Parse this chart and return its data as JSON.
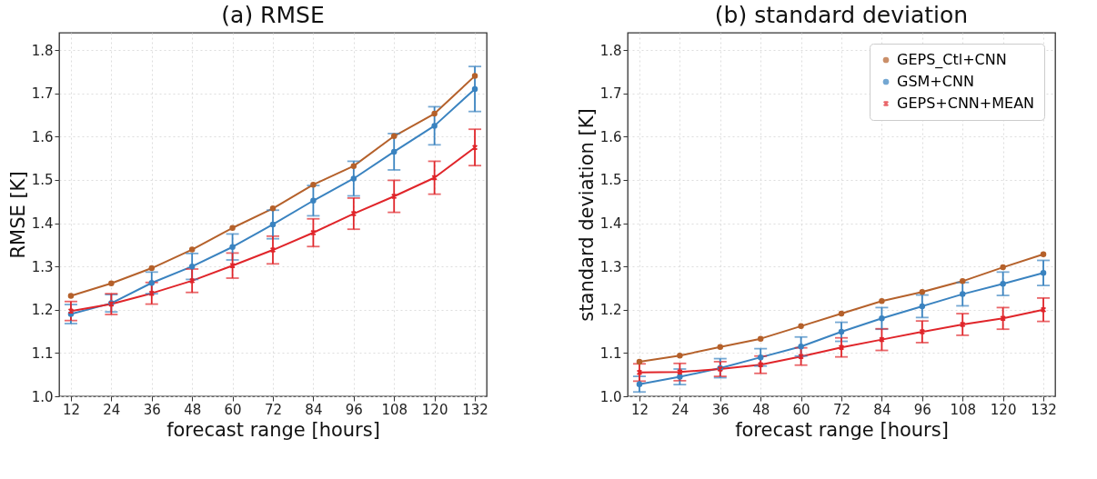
{
  "chart_data": [
    {
      "type": "line",
      "title": "(a) RMSE",
      "xlabel": "forecast range [hours]",
      "ylabel": "RMSE [K]",
      "x": [
        12,
        24,
        36,
        48,
        60,
        72,
        84,
        96,
        108,
        120,
        132
      ],
      "xlim": [
        8.5,
        135.5
      ],
      "xticks": [
        12,
        24,
        36,
        48,
        60,
        72,
        84,
        96,
        108,
        120,
        132
      ],
      "ylim": [
        1.0,
        1.84
      ],
      "yticks": [
        {
          "value": 1,
          "label": "1.0"
        },
        1.1,
        1.2,
        1.3,
        1.4,
        1.5,
        1.6,
        1.7,
        1.8
      ],
      "grid": true,
      "legend": false,
      "series": [
        {
          "color": "#b5612b",
          "marker": "circle",
          "values": [
            1.232,
            1.261,
            1.296,
            1.339,
            1.389,
            1.434,
            1.489,
            1.532,
            1.601,
            1.653,
            1.74
          ]
        },
        {
          "color": "#3a83c0",
          "marker": "circle",
          "values": [
            1.19,
            1.215,
            1.262,
            1.3,
            1.345,
            1.397,
            1.452,
            1.503,
            1.565,
            1.625,
            1.71
          ],
          "errors": [
            0.022,
            0.02,
            0.025,
            0.03,
            0.03,
            0.033,
            0.035,
            0.04,
            0.042,
            0.044,
            0.052
          ]
        },
        {
          "color": "#e0252a",
          "marker": "cross",
          "values": [
            1.197,
            1.213,
            1.238,
            1.267,
            1.302,
            1.338,
            1.378,
            1.422,
            1.462,
            1.505,
            1.575
          ],
          "errors": [
            0.022,
            0.024,
            0.025,
            0.027,
            0.029,
            0.032,
            0.032,
            0.036,
            0.037,
            0.038,
            0.042
          ]
        }
      ]
    },
    {
      "type": "line",
      "title": "(b) standard deviation",
      "xlabel": "forecast range [hours]",
      "ylabel": "standard deviation [K]",
      "x": [
        12,
        24,
        36,
        48,
        60,
        72,
        84,
        96,
        108,
        120,
        132
      ],
      "xlim": [
        8.5,
        135.5
      ],
      "xticks": [
        12,
        24,
        36,
        48,
        60,
        72,
        84,
        96,
        108,
        120,
        132
      ],
      "ylim": [
        1.0,
        1.84
      ],
      "yticks": [
        {
          "value": 1,
          "label": "1.0"
        },
        1.1,
        1.2,
        1.3,
        1.4,
        1.5,
        1.6,
        1.7,
        1.8
      ],
      "grid": true,
      "legend": "top right",
      "series": [
        {
          "name": "GEPS_Ctl+CNN",
          "color": "#b5612b",
          "marker": "circle",
          "values": [
            1.08,
            1.094,
            1.114,
            1.133,
            1.162,
            1.191,
            1.22,
            1.241,
            1.266,
            1.298,
            1.328
          ]
        },
        {
          "name": "GSM+CNN",
          "color": "#3a83c0",
          "marker": "circle",
          "values": [
            1.028,
            1.045,
            1.065,
            1.09,
            1.115,
            1.149,
            1.18,
            1.208,
            1.236,
            1.26,
            1.285
          ],
          "errors": [
            0.018,
            0.018,
            0.022,
            0.02,
            0.022,
            0.022,
            0.025,
            0.026,
            0.027,
            0.027,
            0.029
          ]
        },
        {
          "name": "GEPS+CNN+MEAN",
          "color": "#e0252a",
          "marker": "cross",
          "values": [
            1.055,
            1.056,
            1.063,
            1.073,
            1.092,
            1.113,
            1.131,
            1.149,
            1.166,
            1.18,
            1.2
          ],
          "errors": [
            0.02,
            0.02,
            0.017,
            0.02,
            0.02,
            0.022,
            0.025,
            0.025,
            0.025,
            0.025,
            0.027
          ]
        }
      ]
    }
  ]
}
